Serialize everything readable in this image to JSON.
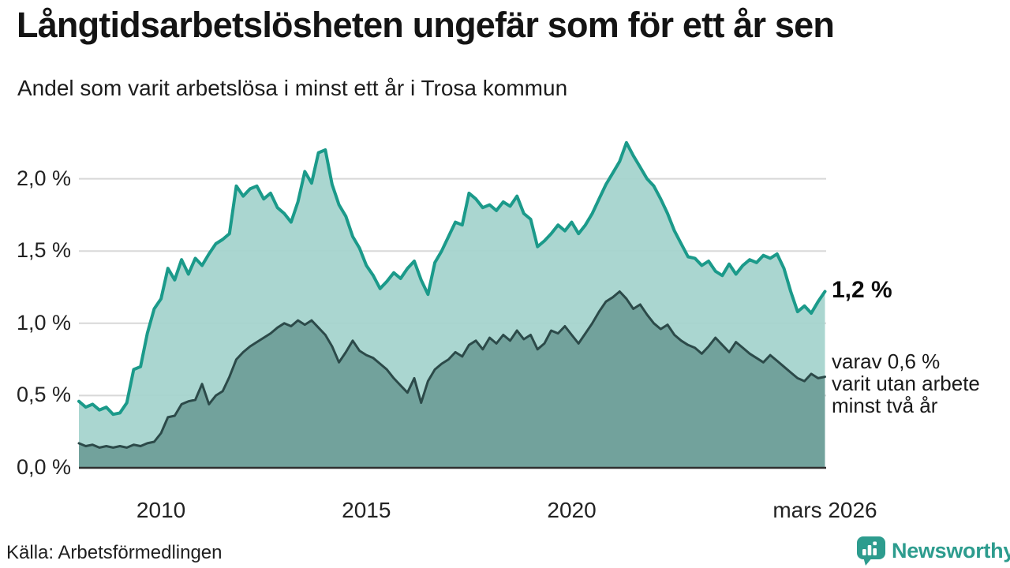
{
  "header": {
    "title": "Långtidsarbetslösheten ungefär som för ett år sen",
    "subtitle": "Andel som varit arbetslösa i minst ett år i Trosa kommun"
  },
  "annotations": {
    "end_value_label": "1,2 %",
    "subset_lines": [
      "varav 0,6 %",
      "varit utan arbete",
      "minst två år"
    ]
  },
  "footer": {
    "source": "Källa: Arbetsförmedlingen",
    "brand_name": "Newsworthy",
    "brand_icon": "bar-chart-pin-icon"
  },
  "colors": {
    "line_total": "#1b9a8a",
    "fill_total": "#a5d4cd",
    "line_subset": "#2c4a49",
    "fill_subset": "#71a09a",
    "gridline": "#d8d8d8",
    "baseline": "#2f2f2f",
    "brand_teal": "#2d9c8e",
    "text": "#111111"
  },
  "chart_data": {
    "type": "area",
    "title": "Långtidsarbetslösheten ungefär som för ett år sen",
    "subtitle": "Andel som varit arbetslösa i minst ett år i Trosa kommun",
    "unit": "%",
    "x_start_year": 2008.0,
    "x_step_months": 2,
    "xlim": [
      2008.0,
      2026.1667
    ],
    "ylim": [
      0,
      2.35
    ],
    "grid": "horizontal",
    "legend_position": "right-annotations",
    "y_ticks": [
      {
        "value": 0.0,
        "label": "0,0 %"
      },
      {
        "value": 0.5,
        "label": "0,5 %"
      },
      {
        "value": 1.0,
        "label": "1,0 %"
      },
      {
        "value": 1.5,
        "label": "1,5 %"
      },
      {
        "value": 2.0,
        "label": "2,0 %"
      }
    ],
    "x_ticks": [
      {
        "x": 2010,
        "label": "2010"
      },
      {
        "x": 2015,
        "label": "2015"
      },
      {
        "x": 2020,
        "label": "2020"
      },
      {
        "x": 2026.1667,
        "label": "mars 2026"
      }
    ],
    "series": [
      {
        "name": "Andel arbetslösa minst ett år",
        "end_label": "1,2 %",
        "end_value": 1.2,
        "line_color": "#1b9a8a",
        "fill_color": "#a5d4cd",
        "values": [
          0.46,
          0.42,
          0.44,
          0.4,
          0.42,
          0.37,
          0.38,
          0.45,
          0.68,
          0.7,
          0.93,
          1.1,
          1.17,
          1.38,
          1.3,
          1.44,
          1.34,
          1.45,
          1.4,
          1.48,
          1.55,
          1.58,
          1.62,
          1.95,
          1.88,
          1.93,
          1.95,
          1.86,
          1.9,
          1.8,
          1.76,
          1.7,
          1.84,
          2.05,
          1.97,
          2.18,
          2.2,
          1.96,
          1.82,
          1.74,
          1.6,
          1.52,
          1.4,
          1.33,
          1.24,
          1.29,
          1.35,
          1.31,
          1.38,
          1.43,
          1.3,
          1.2,
          1.42,
          1.5,
          1.6,
          1.7,
          1.68,
          1.9,
          1.86,
          1.8,
          1.82,
          1.78,
          1.84,
          1.81,
          1.88,
          1.76,
          1.72,
          1.53,
          1.57,
          1.62,
          1.68,
          1.64,
          1.7,
          1.62,
          1.68,
          1.76,
          1.86,
          1.96,
          2.04,
          2.12,
          2.25,
          2.16,
          2.08,
          2.0,
          1.95,
          1.86,
          1.76,
          1.64,
          1.55,
          1.46,
          1.45,
          1.4,
          1.43,
          1.36,
          1.33,
          1.41,
          1.34,
          1.4,
          1.44,
          1.42,
          1.47,
          1.45,
          1.48,
          1.38,
          1.22,
          1.08,
          1.12,
          1.07,
          1.15,
          1.22
        ]
      },
      {
        "name": "Varav utan arbete minst två år",
        "end_label": "varav 0,6 % varit utan arbete minst två år",
        "end_value": 0.6,
        "line_color": "#2c4a49",
        "fill_color": "#71a09a",
        "values": [
          0.17,
          0.15,
          0.16,
          0.14,
          0.15,
          0.14,
          0.15,
          0.14,
          0.16,
          0.15,
          0.17,
          0.18,
          0.24,
          0.35,
          0.36,
          0.44,
          0.46,
          0.47,
          0.58,
          0.44,
          0.5,
          0.53,
          0.63,
          0.75,
          0.8,
          0.84,
          0.87,
          0.9,
          0.93,
          0.97,
          1.0,
          0.98,
          1.02,
          0.99,
          1.02,
          0.97,
          0.92,
          0.84,
          0.73,
          0.8,
          0.88,
          0.81,
          0.78,
          0.76,
          0.72,
          0.68,
          0.62,
          0.57,
          0.52,
          0.62,
          0.45,
          0.6,
          0.68,
          0.72,
          0.75,
          0.8,
          0.77,
          0.85,
          0.88,
          0.82,
          0.9,
          0.86,
          0.92,
          0.88,
          0.95,
          0.89,
          0.92,
          0.82,
          0.86,
          0.95,
          0.93,
          0.98,
          0.92,
          0.86,
          0.93,
          1.0,
          1.08,
          1.15,
          1.18,
          1.22,
          1.17,
          1.1,
          1.13,
          1.06,
          1.0,
          0.96,
          0.99,
          0.92,
          0.88,
          0.85,
          0.83,
          0.79,
          0.84,
          0.9,
          0.85,
          0.8,
          0.87,
          0.83,
          0.79,
          0.76,
          0.73,
          0.78,
          0.74,
          0.7,
          0.66,
          0.62,
          0.6,
          0.65,
          0.62,
          0.63
        ]
      }
    ]
  }
}
